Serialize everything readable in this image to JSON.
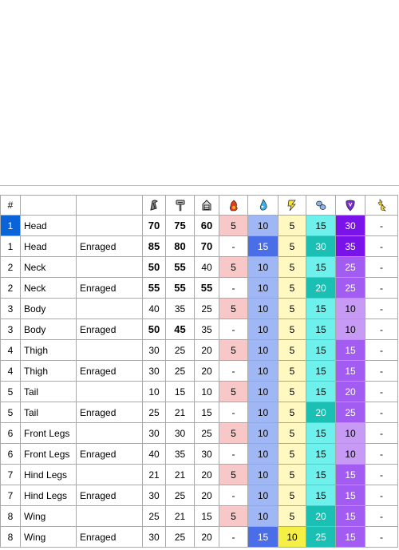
{
  "table": {
    "headers": {
      "num": "#",
      "col_icons": [
        "sword-icon",
        "hammer-icon",
        "shot-icon",
        "fire-icon",
        "water-icon",
        "thunder-icon",
        "ice-icon",
        "dragon-icon",
        "stun-icon"
      ]
    },
    "colors": {
      "fire_bg": "#f8c8c8",
      "water_bg_light": "#9fb8f5",
      "water_bg_dark": "#4a6ee8",
      "thunder_bg": "#fff8c0",
      "thunder_bg_dark": "#f6ef45",
      "ice_bg_light": "#6ef0ec",
      "ice_bg_dark": "#19c0b3",
      "dragon_bg_light": "#c79af5",
      "dragon_bg_mid": "#a35cf2",
      "dragon_bg_dark": "#7a12ea",
      "selected_row": "#0a64d8"
    },
    "rows": [
      {
        "n": "1",
        "part": "Head",
        "state": "",
        "cut": "70",
        "impact": "75",
        "shot": "60",
        "fire": "5",
        "water": "10",
        "thunder": "5",
        "ice": "15",
        "dragon": "30",
        "stun": "-"
      },
      {
        "n": "1",
        "part": "Head",
        "state": "Enraged",
        "cut": "85",
        "impact": "80",
        "shot": "70",
        "fire": "-",
        "water": "15",
        "thunder": "5",
        "ice": "30",
        "dragon": "35",
        "stun": "-"
      },
      {
        "n": "2",
        "part": "Neck",
        "state": "",
        "cut": "50",
        "impact": "55",
        "shot": "40",
        "fire": "5",
        "water": "10",
        "thunder": "5",
        "ice": "15",
        "dragon": "25",
        "stun": "-"
      },
      {
        "n": "2",
        "part": "Neck",
        "state": "Enraged",
        "cut": "55",
        "impact": "55",
        "shot": "55",
        "fire": "-",
        "water": "10",
        "thunder": "5",
        "ice": "20",
        "dragon": "25",
        "stun": "-"
      },
      {
        "n": "3",
        "part": "Body",
        "state": "",
        "cut": "40",
        "impact": "35",
        "shot": "25",
        "fire": "5",
        "water": "10",
        "thunder": "5",
        "ice": "15",
        "dragon": "10",
        "stun": "-"
      },
      {
        "n": "3",
        "part": "Body",
        "state": "Enraged",
        "cut": "50",
        "impact": "45",
        "shot": "35",
        "fire": "-",
        "water": "10",
        "thunder": "5",
        "ice": "15",
        "dragon": "10",
        "stun": "-"
      },
      {
        "n": "4",
        "part": "Thigh",
        "state": "",
        "cut": "30",
        "impact": "25",
        "shot": "20",
        "fire": "5",
        "water": "10",
        "thunder": "5",
        "ice": "15",
        "dragon": "15",
        "stun": "-"
      },
      {
        "n": "4",
        "part": "Thigh",
        "state": "Enraged",
        "cut": "30",
        "impact": "25",
        "shot": "20",
        "fire": "-",
        "water": "10",
        "thunder": "5",
        "ice": "15",
        "dragon": "15",
        "stun": "-"
      },
      {
        "n": "5",
        "part": "Tail",
        "state": "",
        "cut": "10",
        "impact": "15",
        "shot": "10",
        "fire": "5",
        "water": "10",
        "thunder": "5",
        "ice": "15",
        "dragon": "20",
        "stun": "-"
      },
      {
        "n": "5",
        "part": "Tail",
        "state": "Enraged",
        "cut": "25",
        "impact": "21",
        "shot": "15",
        "fire": "-",
        "water": "10",
        "thunder": "5",
        "ice": "20",
        "dragon": "25",
        "stun": "-"
      },
      {
        "n": "6",
        "part": "Front Legs",
        "state": "",
        "cut": "30",
        "impact": "30",
        "shot": "25",
        "fire": "5",
        "water": "10",
        "thunder": "5",
        "ice": "15",
        "dragon": "10",
        "stun": "-"
      },
      {
        "n": "6",
        "part": "Front Legs",
        "state": "Enraged",
        "cut": "40",
        "impact": "35",
        "shot": "30",
        "fire": "-",
        "water": "10",
        "thunder": "5",
        "ice": "15",
        "dragon": "10",
        "stun": "-"
      },
      {
        "n": "7",
        "part": "Hind Legs",
        "state": "",
        "cut": "21",
        "impact": "21",
        "shot": "20",
        "fire": "5",
        "water": "10",
        "thunder": "5",
        "ice": "15",
        "dragon": "15",
        "stun": "-"
      },
      {
        "n": "7",
        "part": "Hind Legs",
        "state": "Enraged",
        "cut": "30",
        "impact": "25",
        "shot": "20",
        "fire": "-",
        "water": "10",
        "thunder": "5",
        "ice": "15",
        "dragon": "15",
        "stun": "-"
      },
      {
        "n": "8",
        "part": "Wing",
        "state": "",
        "cut": "25",
        "impact": "21",
        "shot": "15",
        "fire": "5",
        "water": "10",
        "thunder": "5",
        "ice": "20",
        "dragon": "15",
        "stun": "-"
      },
      {
        "n": "8",
        "part": "Wing",
        "state": "Enraged",
        "cut": "30",
        "impact": "25",
        "shot": "20",
        "fire": "-",
        "water": "15",
        "thunder": "10",
        "ice": "25",
        "dragon": "15",
        "stun": "-"
      }
    ],
    "selected_row_index": 0
  }
}
